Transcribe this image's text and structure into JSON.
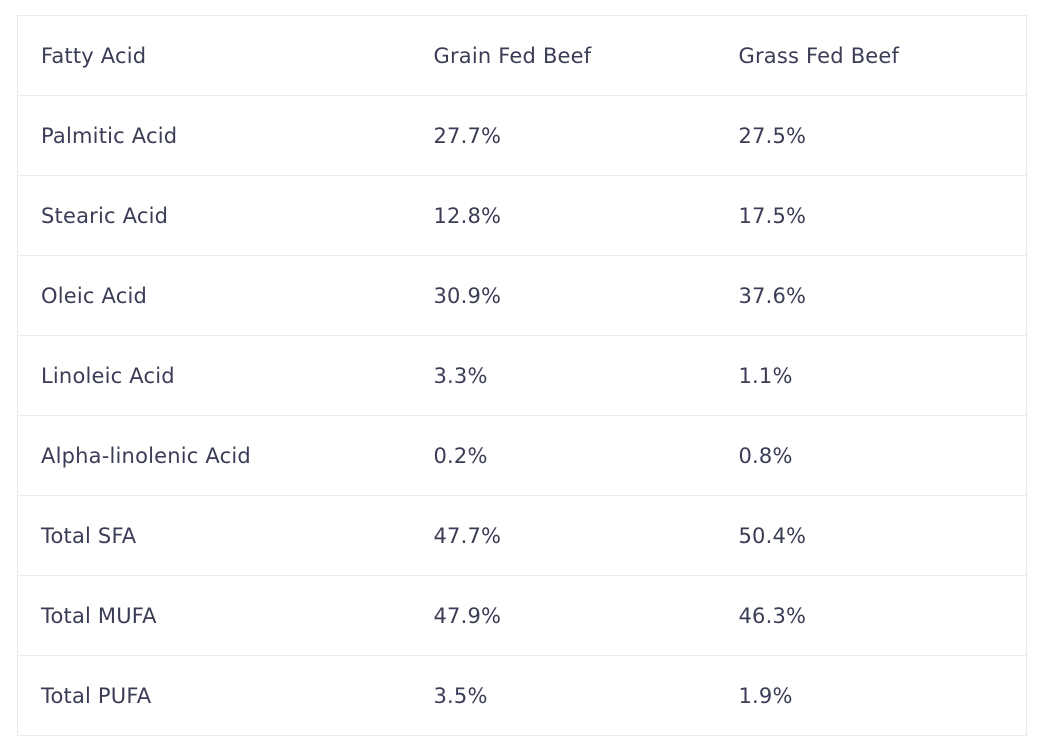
{
  "table": {
    "headers": [
      "Fatty Acid",
      "Grain Fed Beef",
      "Grass Fed Beef"
    ],
    "rows": [
      [
        "Palmitic Acid",
        "27.7%",
        "27.5%"
      ],
      [
        "Stearic Acid",
        "12.8%",
        "17.5%"
      ],
      [
        "Oleic Acid",
        "30.9%",
        "37.6%"
      ],
      [
        "Linoleic Acid",
        "3.3%",
        "1.1%"
      ],
      [
        "Alpha-linolenic Acid",
        "0.2%",
        "0.8%"
      ],
      [
        "Total SFA",
        "47.7%",
        "50.4%"
      ],
      [
        "Total MUFA",
        "47.9%",
        "46.3%"
      ],
      [
        "Total PUFA",
        "3.5%",
        "1.9%"
      ]
    ]
  },
  "colors": {
    "text": "#3a3d55",
    "border": "#e9eaee",
    "background": "#ffffff"
  }
}
